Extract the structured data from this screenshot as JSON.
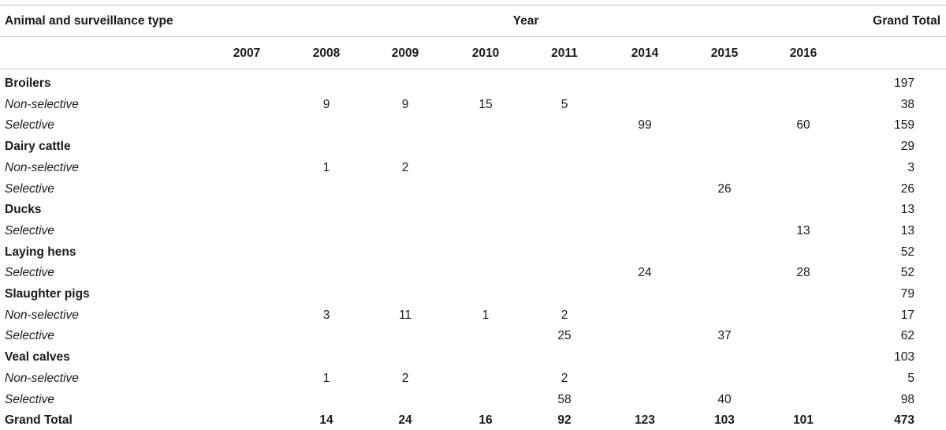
{
  "table": {
    "header": {
      "row_label": "Animal and surveillance type",
      "year_group": "Year",
      "grand_total": "Grand Total",
      "years": [
        "2007",
        "2008",
        "2009",
        "2010",
        "2011",
        "2014",
        "2015",
        "2016"
      ]
    },
    "rows": [
      {
        "label": "Broilers",
        "type": "group",
        "values": [
          "",
          "",
          "",
          "",
          "",
          "",
          "",
          ""
        ],
        "total": "197"
      },
      {
        "label": "Non-selective",
        "type": "sub",
        "values": [
          "",
          "9",
          "9",
          "15",
          "5",
          "",
          "",
          ""
        ],
        "total": "38"
      },
      {
        "label": "Selective",
        "type": "sub",
        "values": [
          "",
          "",
          "",
          "",
          "",
          "99",
          "",
          "60"
        ],
        "total": "159"
      },
      {
        "label": "Dairy cattle",
        "type": "group",
        "values": [
          "",
          "",
          "",
          "",
          "",
          "",
          "",
          ""
        ],
        "total": "29"
      },
      {
        "label": "Non-selective",
        "type": "sub",
        "values": [
          "",
          "1",
          "2",
          "",
          "",
          "",
          "",
          ""
        ],
        "total": "3"
      },
      {
        "label": "Selective",
        "type": "sub",
        "values": [
          "",
          "",
          "",
          "",
          "",
          "",
          "26",
          ""
        ],
        "total": "26"
      },
      {
        "label": "Ducks",
        "type": "group",
        "values": [
          "",
          "",
          "",
          "",
          "",
          "",
          "",
          ""
        ],
        "total": "13"
      },
      {
        "label": "Selective",
        "type": "sub",
        "values": [
          "",
          "",
          "",
          "",
          "",
          "",
          "",
          "13"
        ],
        "total": "13"
      },
      {
        "label": "Laying hens",
        "type": "group",
        "values": [
          "",
          "",
          "",
          "",
          "",
          "",
          "",
          ""
        ],
        "total": "52"
      },
      {
        "label": "Selective",
        "type": "sub",
        "values": [
          "",
          "",
          "",
          "",
          "",
          "24",
          "",
          "28"
        ],
        "total": "52"
      },
      {
        "label": "Slaughter pigs",
        "type": "group",
        "values": [
          "",
          "",
          "",
          "",
          "",
          "",
          "",
          ""
        ],
        "total": "79"
      },
      {
        "label": "Non-selective",
        "type": "sub",
        "values": [
          "",
          "3",
          "11",
          "1",
          "2",
          "",
          "",
          ""
        ],
        "total": "17"
      },
      {
        "label": "Selective",
        "type": "sub",
        "values": [
          "",
          "",
          "",
          "",
          "25",
          "",
          "37",
          ""
        ],
        "total": "62"
      },
      {
        "label": "Veal calves",
        "type": "group",
        "values": [
          "",
          "",
          "",
          "",
          "",
          "",
          "",
          ""
        ],
        "total": "103"
      },
      {
        "label": "Non-selective",
        "type": "sub",
        "values": [
          "",
          "1",
          "2",
          "",
          "2",
          "",
          "",
          ""
        ],
        "total": "5"
      },
      {
        "label": "Selective",
        "type": "sub",
        "values": [
          "",
          "",
          "",
          "",
          "58",
          "",
          "40",
          ""
        ],
        "total": "98"
      },
      {
        "label": "Grand Total",
        "type": "total",
        "values": [
          "",
          "14",
          "24",
          "16",
          "92",
          "123",
          "103",
          "101"
        ],
        "total": "473"
      }
    ]
  }
}
